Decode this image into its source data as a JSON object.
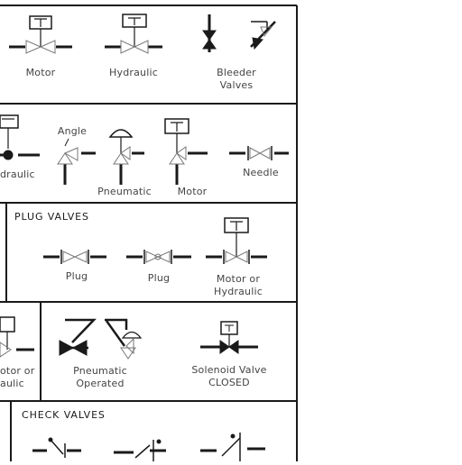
{
  "colors": {
    "ink": "#1a1a1a",
    "label": "#444444",
    "background": "#ffffff"
  },
  "rows": [
    {
      "id": "row1",
      "labels": {
        "motor": "Motor",
        "hydraulic": "Hydraulic",
        "bleeder_line1": "Bleeder",
        "bleeder_line2": "Valves"
      }
    },
    {
      "id": "row2",
      "labels": {
        "hydraulic_partial": "draulic",
        "angle": "Angle",
        "pneumatic": "Pneumatic",
        "motor": "Motor",
        "needle": "Needle"
      }
    },
    {
      "id": "row3",
      "header": "PLUG VALVES",
      "labels": {
        "plug1": "Plug",
        "plug2": "Plug",
        "motor_or_line1": "Motor or",
        "motor_or_line2": "Hydraulic"
      }
    },
    {
      "id": "row4",
      "labels": {
        "partial_line1": "otor or",
        "partial_line2": "aulic",
        "pneumatic_line1": "Pneumatic",
        "pneumatic_line2": "Operated",
        "solenoid_line1": "Solenoid Valve",
        "solenoid_line2": "CLOSED"
      }
    },
    {
      "id": "row5",
      "header": "CHECK VALVES"
    }
  ],
  "icons": [
    "motor-operated-valve-icon",
    "hydraulic-valve-icon",
    "bleeder-valve-icon",
    "angle-valve-icon",
    "pneumatic-valve-icon",
    "needle-valve-icon",
    "plug-valve-icon",
    "solenoid-valve-icon",
    "check-valve-icon"
  ]
}
